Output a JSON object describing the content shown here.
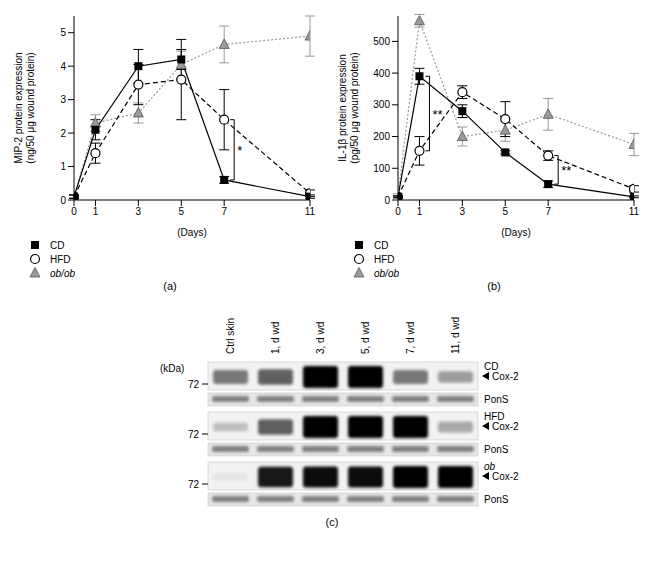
{
  "chart_data": [
    {
      "type": "line",
      "panel_label": "(a)",
      "xlabel": "(Days)",
      "ylabel": [
        "MIP-2 protein expression",
        "(ng/50 μg wound protein)"
      ],
      "x": [
        0,
        1,
        3,
        5,
        7,
        11
      ],
      "xlim": [
        0,
        11
      ],
      "xticks": [
        0,
        1,
        3,
        5,
        7,
        11
      ],
      "ylim": [
        0,
        5.5
      ],
      "yticks": [
        0,
        1,
        2,
        3,
        4,
        5
      ],
      "series": [
        {
          "name": "ob/ob",
          "color": "#999999",
          "marker": "triangle",
          "line_style": "dotted",
          "values": [
            0.1,
            2.3,
            2.6,
            4.05,
            4.65,
            4.9
          ],
          "error": [
            0.05,
            0.25,
            0.3,
            0.4,
            0.55,
            0.6
          ]
        },
        {
          "name": "HFD",
          "color": "#000000",
          "marker": "open_circle",
          "line_style": "dashed",
          "values": [
            0.1,
            1.4,
            3.45,
            3.6,
            2.4,
            0.2
          ],
          "error": [
            0.05,
            0.3,
            0.6,
            1.2,
            0.9,
            0.1
          ]
        },
        {
          "name": "CD",
          "color": "#000000",
          "marker": "square",
          "line_style": "solid",
          "values": [
            0.1,
            2.1,
            4.0,
            4.2,
            0.6,
            0.1
          ],
          "error": [
            0.05,
            0.3,
            0.5,
            0.3,
            0.1,
            0.05
          ]
        }
      ],
      "annotations": [
        {
          "text": "*",
          "x": 7,
          "y": [
            0.6,
            2.4
          ]
        }
      ]
    },
    {
      "type": "line",
      "panel_label": "(b)",
      "xlabel": "(Days)",
      "ylabel": [
        "IL-1β protein expression",
        "(pg/50 μg wound protein)"
      ],
      "x": [
        0,
        1,
        3,
        5,
        7,
        11
      ],
      "xlim": [
        0,
        11
      ],
      "xticks": [
        0,
        1,
        3,
        5,
        7,
        11
      ],
      "ylim": [
        0,
        580
      ],
      "yticks": [
        0,
        100,
        200,
        300,
        400,
        500
      ],
      "series": [
        {
          "name": "ob/ob",
          "color": "#999999",
          "marker": "triangle",
          "line_style": "dotted",
          "values": [
            15,
            565,
            200,
            220,
            270,
            175
          ],
          "error": [
            5,
            20,
            30,
            35,
            50,
            35
          ]
        },
        {
          "name": "HFD",
          "color": "#000000",
          "marker": "open_circle",
          "line_style": "dashed",
          "values": [
            10,
            155,
            340,
            255,
            140,
            35
          ],
          "error": [
            3,
            45,
            20,
            55,
            15,
            10
          ]
        },
        {
          "name": "CD",
          "color": "#000000",
          "marker": "square",
          "line_style": "solid",
          "values": [
            10,
            390,
            280,
            150,
            50,
            10
          ],
          "error": [
            3,
            25,
            20,
            5,
            10,
            3
          ]
        }
      ],
      "annotations": [
        {
          "text": "**",
          "x": 1,
          "y": [
            155,
            390
          ]
        },
        {
          "text": "**",
          "x": 7,
          "y": [
            50,
            140
          ]
        }
      ]
    }
  ],
  "blot": {
    "panel_label": "(c)",
    "kda_label": "(kDa)",
    "marker_kda": 72,
    "lanes": [
      "Ctrl skin",
      "1, d wd",
      "3, d wd",
      "5, d wd",
      "7, d wd",
      "11, d wd"
    ],
    "groups": [
      {
        "name": "CD",
        "target": "Cox-2",
        "loading": "PonS",
        "cox2_intensity": [
          0.5,
          0.6,
          1,
          1,
          0.5,
          0.35
        ]
      },
      {
        "name": "HFD",
        "target": "Cox-2",
        "loading": "PonS",
        "cox2_intensity": [
          0.2,
          0.6,
          1,
          1,
          1,
          0.3
        ]
      },
      {
        "name": "ob",
        "target": "Cox-2",
        "loading": "PonS",
        "cox2_intensity": [
          0.05,
          0.9,
          0.95,
          0.95,
          1,
          1
        ]
      }
    ]
  }
}
